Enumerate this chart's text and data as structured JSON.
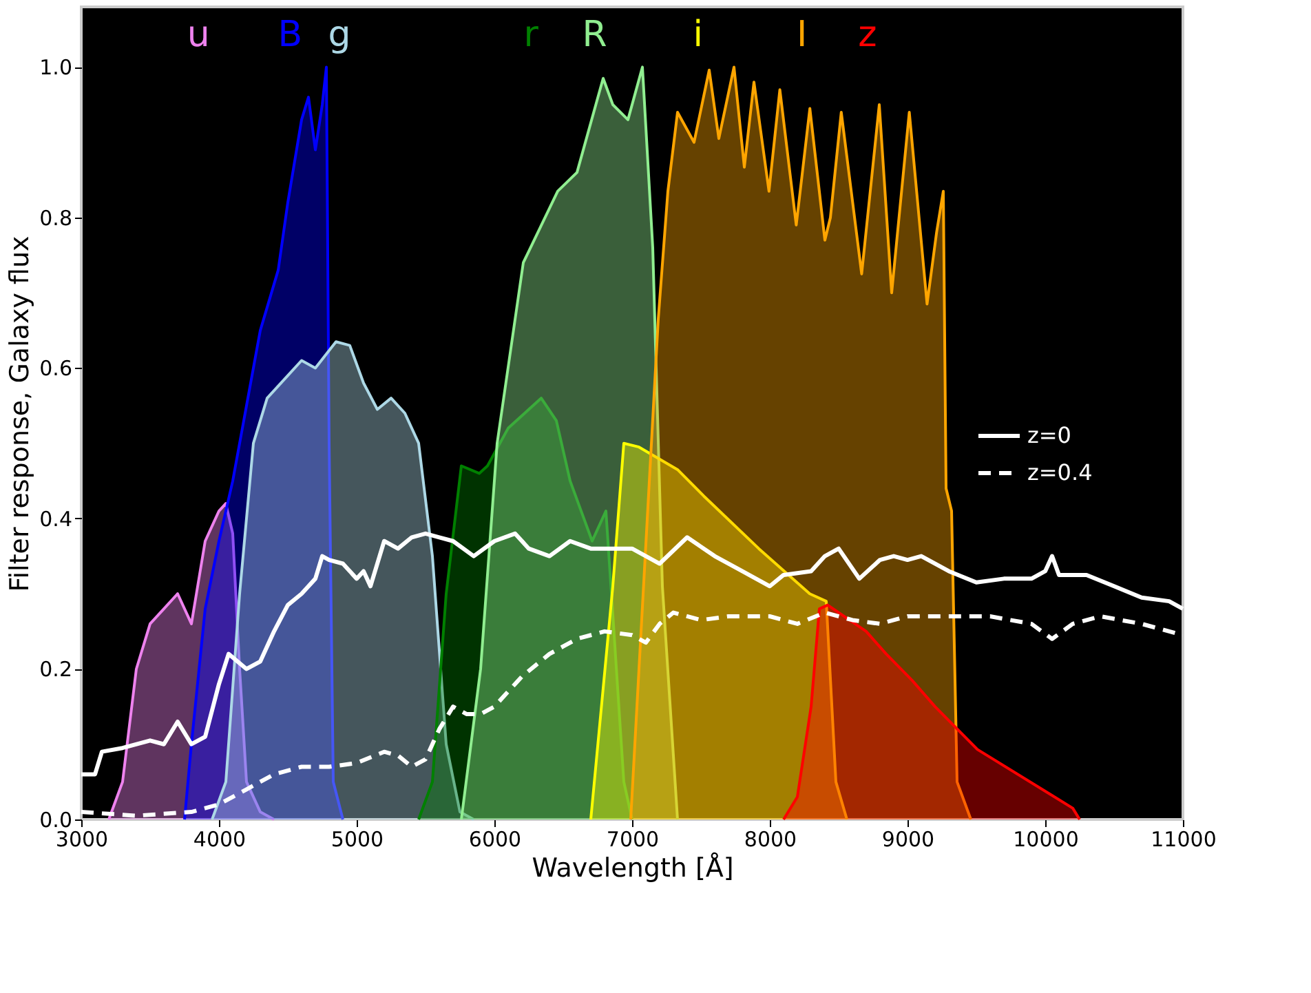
{
  "chart_data": {
    "type": "area",
    "xlabel": "Wavelength [Å]",
    "ylabel": "Filter response, Galaxy flux",
    "xlim": [
      3000,
      11000
    ],
    "ylim": [
      0,
      1.08
    ],
    "xticks": [
      {
        "value": 3000,
        "label": "3000"
      },
      {
        "value": 4000,
        "label": "4000"
      },
      {
        "value": 5000,
        "label": "5000"
      },
      {
        "value": 6000,
        "label": "6000"
      },
      {
        "value": 7000,
        "label": "7000"
      },
      {
        "value": 8000,
        "label": "8000"
      },
      {
        "value": 9000,
        "label": "9000"
      },
      {
        "value": 10000,
        "label": "10000"
      },
      {
        "value": 11000,
        "label": "11000"
      }
    ],
    "yticks": [
      {
        "value": 0,
        "label": "0.0"
      },
      {
        "value": 0.2,
        "label": "0.2"
      },
      {
        "value": 0.4,
        "label": "0.4"
      },
      {
        "value": 0.6,
        "label": "0.6"
      },
      {
        "value": 0.8,
        "label": "0.8"
      },
      {
        "value": 1,
        "label": "1.0"
      }
    ],
    "grid": false,
    "legend": "right",
    "series": [
      {
        "name": "u",
        "color": "#ee82ee",
        "x": [
          3200,
          3300,
          3400,
          3500,
          3600,
          3700,
          3800,
          3900,
          4000,
          4050,
          4100,
          4150,
          4200,
          4300,
          4400
        ],
        "values": [
          0,
          0.05,
          0.2,
          0.26,
          0.28,
          0.3,
          0.26,
          0.37,
          0.41,
          0.42,
          0.38,
          0.2,
          0.05,
          0.01,
          0
        ]
      },
      {
        "name": "B",
        "color": "#0000ff",
        "x": [
          3750,
          3800,
          3900,
          4000,
          4100,
          4200,
          4300,
          4430,
          4500,
          4600,
          4650,
          4700,
          4750,
          4780,
          4800,
          4830,
          4900
        ],
        "values": [
          0,
          0.1,
          0.28,
          0.37,
          0.45,
          0.55,
          0.65,
          0.73,
          0.82,
          0.93,
          0.96,
          0.89,
          0.95,
          1.0,
          0.5,
          0.05,
          0
        ]
      },
      {
        "name": "g",
        "color": "#add8e6",
        "x": [
          3950,
          4050,
          4150,
          4250,
          4350,
          4500,
          4600,
          4700,
          4850,
          4950,
          5050,
          5150,
          5250,
          5350,
          5450,
          5550,
          5650,
          5750,
          5850
        ],
        "values": [
          0,
          0.05,
          0.3,
          0.5,
          0.56,
          0.59,
          0.61,
          0.6,
          0.635,
          0.63,
          0.58,
          0.545,
          0.56,
          0.54,
          0.5,
          0.35,
          0.1,
          0.01,
          0
        ]
      },
      {
        "name": "r",
        "color": "#008000",
        "x": [
          5450,
          5550,
          5650,
          5760,
          5890,
          5950,
          6100,
          6340,
          6450,
          6550,
          6710,
          6810,
          6850,
          6940,
          7000
        ],
        "values": [
          0,
          0.05,
          0.3,
          0.47,
          0.46,
          0.47,
          0.52,
          0.56,
          0.53,
          0.45,
          0.37,
          0.41,
          0.3,
          0.05,
          0
        ]
      },
      {
        "name": "R",
        "color": "#90ee90",
        "x": [
          5760,
          5900,
          6020,
          6210,
          6460,
          6600,
          6790,
          6860,
          6970,
          7075,
          7150,
          7220,
          7330
        ],
        "values": [
          0,
          0.2,
          0.5,
          0.74,
          0.835,
          0.86,
          0.985,
          0.95,
          0.93,
          1.0,
          0.76,
          0.31,
          0
        ]
      },
      {
        "name": "i",
        "color": "#ffff00",
        "x": [
          6700,
          6860,
          6940,
          7050,
          7330,
          7520,
          7920,
          8290,
          8410,
          8480,
          8560
        ],
        "values": [
          0,
          0.31,
          0.5,
          0.495,
          0.465,
          0.43,
          0.36,
          0.3,
          0.29,
          0.05,
          0
        ]
      },
      {
        "name": "I",
        "color": "#ffa500",
        "x": [
          6990,
          7190,
          7260,
          7330,
          7450,
          7560,
          7630,
          7740,
          7815,
          7885,
          7994,
          8073,
          8192,
          8291,
          8400,
          8440,
          8519,
          8667,
          8795,
          8885,
          9013,
          9142,
          9211,
          9260,
          9280,
          9320,
          9360,
          9460
        ],
        "values": [
          0,
          0.665,
          0.835,
          0.94,
          0.9,
          0.996,
          0.905,
          1.0,
          0.867,
          0.98,
          0.835,
          0.97,
          0.79,
          0.945,
          0.77,
          0.8,
          0.94,
          0.725,
          0.95,
          0.7,
          0.94,
          0.685,
          0.78,
          0.835,
          0.44,
          0.41,
          0.05,
          0
        ]
      },
      {
        "name": "z",
        "color": "#ff0000",
        "x": [
          8100,
          8200,
          8300,
          8360,
          8420,
          8700,
          8845,
          9033,
          9200,
          9508,
          10200,
          10250
        ],
        "values": [
          0,
          0.03,
          0.15,
          0.28,
          0.285,
          0.25,
          0.22,
          0.185,
          0.15,
          0.093,
          0.015,
          0
        ]
      },
      {
        "name": "z=0",
        "color": "#ffffff",
        "type": "line",
        "line_style": "solid",
        "x": [
          3000,
          3100,
          3150,
          3300,
          3500,
          3600,
          3700,
          3800,
          3900,
          4000,
          4070,
          4200,
          4300,
          4400,
          4500,
          4600,
          4700,
          4750,
          4800,
          4900,
          5000,
          5050,
          5100,
          5200,
          5300,
          5400,
          5500,
          5600,
          5700,
          5850,
          6000,
          6150,
          6250,
          6400,
          6550,
          6700,
          6900,
          7000,
          7200,
          7400,
          7600,
          7800,
          8000,
          8100,
          8300,
          8400,
          8500,
          8650,
          8800,
          8900,
          9000,
          9100,
          9300,
          9500,
          9700,
          9900,
          10000,
          10050,
          10100,
          10300,
          10500,
          10700,
          10900,
          11000
        ],
        "values": [
          0.06,
          0.06,
          0.09,
          0.095,
          0.105,
          0.1,
          0.13,
          0.1,
          0.11,
          0.18,
          0.22,
          0.2,
          0.21,
          0.25,
          0.285,
          0.3,
          0.32,
          0.35,
          0.345,
          0.34,
          0.32,
          0.33,
          0.31,
          0.37,
          0.36,
          0.375,
          0.38,
          0.375,
          0.37,
          0.35,
          0.37,
          0.38,
          0.36,
          0.35,
          0.37,
          0.36,
          0.36,
          0.36,
          0.34,
          0.375,
          0.35,
          0.33,
          0.31,
          0.325,
          0.33,
          0.35,
          0.36,
          0.32,
          0.345,
          0.35,
          0.345,
          0.35,
          0.33,
          0.315,
          0.32,
          0.32,
          0.33,
          0.35,
          0.325,
          0.325,
          0.31,
          0.295,
          0.29,
          0.28
        ]
      },
      {
        "name": "z=0.4",
        "color": "#ffffff",
        "type": "line",
        "line_style": "dashed",
        "x": [
          3000,
          3400,
          3800,
          4000,
          4200,
          4400,
          4600,
          4800,
          5000,
          5200,
          5300,
          5400,
          5500,
          5600,
          5700,
          5800,
          5900,
          6000,
          6200,
          6400,
          6500,
          6600,
          6800,
          7000,
          7100,
          7200,
          7300,
          7500,
          7700,
          8000,
          8200,
          8400,
          8600,
          8800,
          9000,
          9300,
          9600,
          9900,
          10050,
          10200,
          10400,
          10700,
          11000
        ],
        "values": [
          0.01,
          0.005,
          0.01,
          0.02,
          0.04,
          0.06,
          0.07,
          0.07,
          0.075,
          0.09,
          0.085,
          0.07,
          0.08,
          0.12,
          0.15,
          0.14,
          0.14,
          0.15,
          0.19,
          0.22,
          0.23,
          0.24,
          0.25,
          0.245,
          0.235,
          0.26,
          0.275,
          0.265,
          0.27,
          0.27,
          0.26,
          0.275,
          0.265,
          0.26,
          0.27,
          0.27,
          0.27,
          0.26,
          0.24,
          0.26,
          0.27,
          0.26,
          0.245
        ]
      }
    ]
  }
}
